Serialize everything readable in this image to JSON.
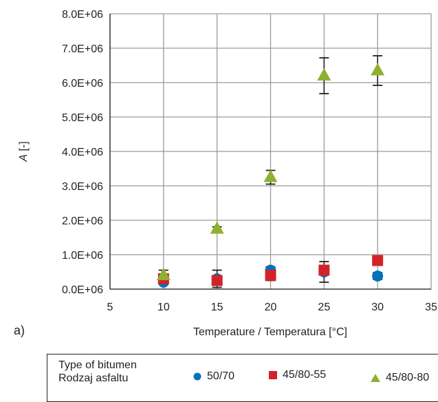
{
  "panel_label": "a)",
  "legend": {
    "title_line1": "Type of bitumen",
    "title_line2": "Rodzaj asfaltu"
  },
  "chart_data": {
    "type": "scatter",
    "xlabel": "Temperature / Temperatura [°C]",
    "ylabel_italic": "A",
    "ylabel_rest": " [-]",
    "xlim": [
      5,
      35
    ],
    "ylim": [
      0,
      8000000
    ],
    "x_ticks": [
      5,
      10,
      15,
      20,
      25,
      30,
      35
    ],
    "y_ticks": [
      0,
      1000000,
      2000000,
      3000000,
      4000000,
      5000000,
      6000000,
      7000000,
      8000000
    ],
    "y_tick_labels": [
      "0.0E+06",
      "1.0E+06",
      "2.0E+06",
      "3.0E+06",
      "4.0E+06",
      "5.0E+06",
      "6.0E+06",
      "7.0E+06",
      "8.0E+06"
    ],
    "grid": true,
    "legend_position": "bottom",
    "series": [
      {
        "name": "50/70",
        "marker": "circle",
        "color": "#0072bc",
        "x": [
          10,
          15,
          20,
          25,
          30
        ],
        "y": [
          200000,
          300000,
          550000,
          500000,
          380000
        ],
        "err": [
          60000,
          250000,
          100000,
          300000,
          100000
        ]
      },
      {
        "name": "45/80-55",
        "marker": "square",
        "color": "#d2232a",
        "x": [
          10,
          15,
          20,
          25,
          30
        ],
        "y": [
          300000,
          250000,
          400000,
          550000,
          830000
        ],
        "err": [
          60000,
          60000,
          150000,
          80000,
          80000
        ]
      },
      {
        "name": "45/80-80",
        "marker": "triangle",
        "color": "#8fb031",
        "x": [
          10,
          15,
          20,
          25,
          30
        ],
        "y": [
          400000,
          1750000,
          3250000,
          6200000,
          6350000
        ],
        "err": [
          150000,
          60000,
          200000,
          520000,
          430000
        ]
      }
    ]
  }
}
